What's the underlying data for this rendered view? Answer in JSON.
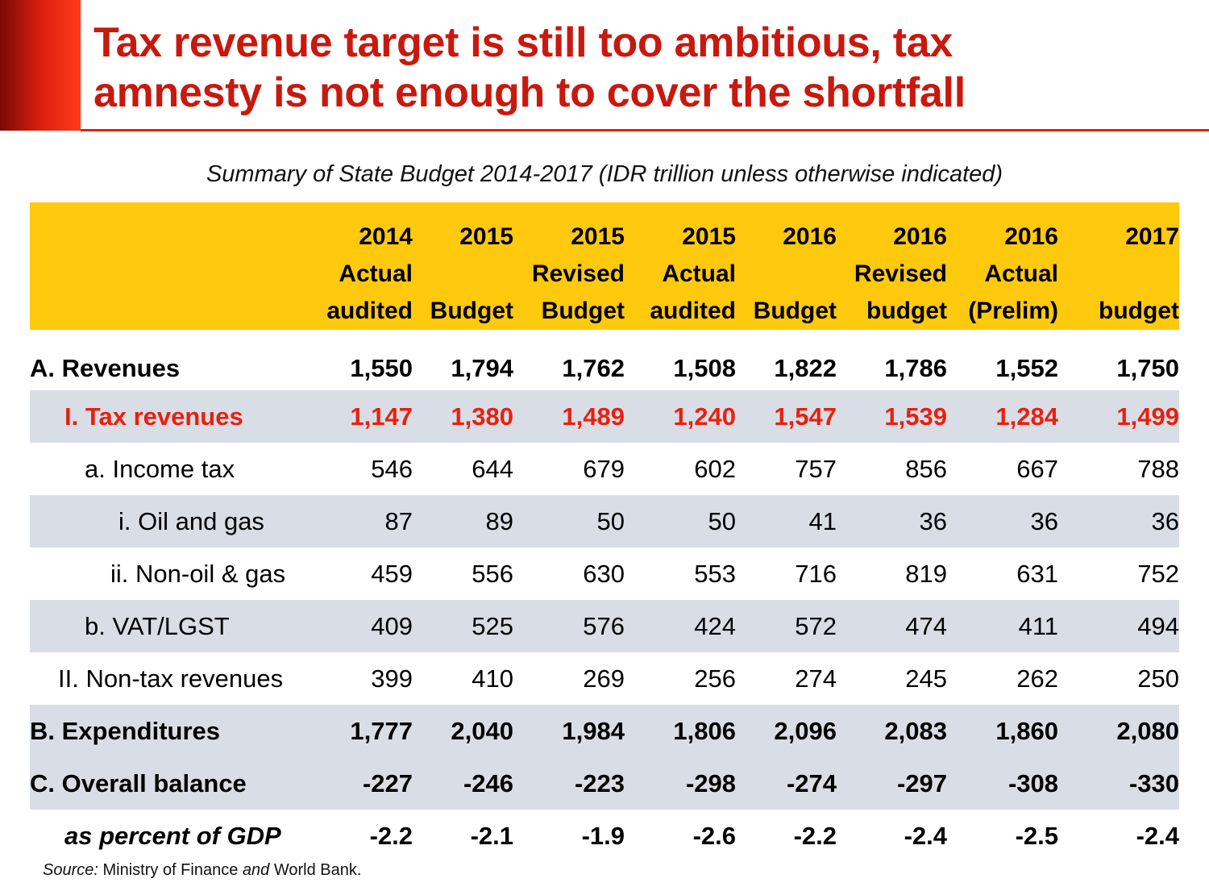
{
  "title": {
    "line1": "Tax revenue target is still too ambitious, tax",
    "line2": "amnesty is not enough to cover the shortfall"
  },
  "subtitle": "Summary of State Budget 2014-2017 (IDR trillion unless otherwise indicated)",
  "colors": {
    "accent_red": "#c8190e",
    "header_yellow": "#ffc90e",
    "row_shade": "#d9dde6",
    "highlight_red": "#e8200e"
  },
  "columns": [
    {
      "l1": "2014",
      "l2": "Actual",
      "l3": "audited"
    },
    {
      "l1": "2015",
      "l2": "",
      "l3": "Budget"
    },
    {
      "l1": "2015",
      "l2": "Revised",
      "l3": "Budget"
    },
    {
      "l1": "2015",
      "l2": "Actual",
      "l3": "audited"
    },
    {
      "l1": "2016",
      "l2": "",
      "l3": "Budget"
    },
    {
      "l1": "2016",
      "l2": "Revised",
      "l3": "budget"
    },
    {
      "l1": "2016",
      "l2": "Actual",
      "l3": "(Prelim)"
    },
    {
      "l1": "2017",
      "l2": "",
      "l3": "budget"
    }
  ],
  "rows": [
    {
      "label": "A. Revenues",
      "values": [
        "1,550",
        "1,794",
        "1,762",
        "1,508",
        "1,822",
        "1,786",
        "1,552",
        "1,750"
      ]
    },
    {
      "label": "I. Tax revenues",
      "values": [
        "1,147",
        "1,380",
        "1,489",
        "1,240",
        "1,547",
        "1,539",
        "1,284",
        "1,499"
      ]
    },
    {
      "label": "a. Income tax",
      "values": [
        "546",
        "644",
        "679",
        "602",
        "757",
        "856",
        "667",
        "788"
      ]
    },
    {
      "label": "i. Oil and gas",
      "values": [
        "87",
        "89",
        "50",
        "50",
        "41",
        "36",
        "36",
        "36"
      ]
    },
    {
      "label": "ii. Non-oil & gas",
      "values": [
        "459",
        "556",
        "630",
        "553",
        "716",
        "819",
        "631",
        "752"
      ]
    },
    {
      "label": "b. VAT/LGST",
      "values": [
        "409",
        "525",
        "576",
        "424",
        "572",
        "474",
        "411",
        "494"
      ]
    },
    {
      "label": "II. Non-tax revenues",
      "values": [
        "399",
        "410",
        "269",
        "256",
        "274",
        "245",
        "262",
        "250"
      ]
    },
    {
      "label": "B. Expenditures",
      "values": [
        "1,777",
        "2,040",
        "1,984",
        "1,806",
        "2,096",
        "2,083",
        "1,860",
        "2,080"
      ]
    },
    {
      "label": "C. Overall balance",
      "values": [
        "-227",
        "-246",
        "-223",
        "-298",
        "-274",
        "-297",
        "-308",
        "-330"
      ]
    },
    {
      "label": "as percent of GDP",
      "values": [
        "-2.2",
        "-2.1",
        "-1.9",
        "-2.6",
        "-2.2",
        "-2.4",
        "-2.5",
        "-2.4"
      ]
    }
  ],
  "source": {
    "prefix": "Source:",
    "part1": " Ministry of Finance ",
    "conj": "and",
    "part2": " World Bank."
  }
}
